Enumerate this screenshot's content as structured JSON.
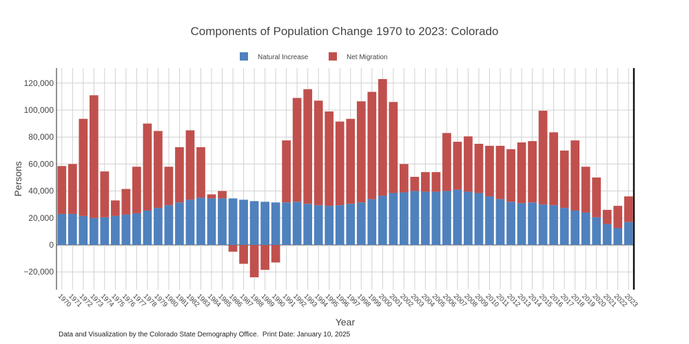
{
  "chart_data": {
    "type": "bar",
    "stacked": true,
    "title": "Components of Population Change 1970 to 2023: Colorado",
    "xlabel": "Year",
    "ylabel": "Persons",
    "ylim": [
      -32000,
      132000
    ],
    "yticks": [
      -20000,
      0,
      20000,
      40000,
      60000,
      80000,
      100000,
      120000
    ],
    "ytick_labels": [
      "−20,000",
      "0",
      "20,000",
      "40,000",
      "60,000",
      "80,000",
      "100,000",
      "120,000"
    ],
    "grid": true,
    "legend_position": "top-center",
    "categories": [
      "1970",
      "1971",
      "1972",
      "1973",
      "1974",
      "1975",
      "1976",
      "1977",
      "1978",
      "1979",
      "1980",
      "1981",
      "1982",
      "1983",
      "1984",
      "1985",
      "1986",
      "1987",
      "1988",
      "1989",
      "1990",
      "1991",
      "1992",
      "1993",
      "1994",
      "1995",
      "1996",
      "1997",
      "1998",
      "1999",
      "2000",
      "2001",
      "2002",
      "2003",
      "2004",
      "2005",
      "2006",
      "2007",
      "2008",
      "2009",
      "2010",
      "2011",
      "2012",
      "2013",
      "2014",
      "2015",
      "2016",
      "2017",
      "2018",
      "2019",
      "2020",
      "2021",
      "2022",
      "2023"
    ],
    "series": [
      {
        "name": "Natural Increase",
        "color": "#4f81bd",
        "values": [
          23000,
          23000,
          21500,
          20000,
          20500,
          21500,
          22500,
          23500,
          25500,
          27500,
          29500,
          31500,
          33500,
          35000,
          34500,
          34500,
          34500,
          33500,
          32500,
          32000,
          31500,
          31500,
          32000,
          30500,
          29500,
          29000,
          29500,
          30500,
          31500,
          34000,
          36500,
          38500,
          39000,
          40000,
          39500,
          39500,
          40000,
          41000,
          39500,
          38500,
          36000,
          34000,
          32000,
          31000,
          31500,
          30000,
          29500,
          27500,
          25500,
          24000,
          20500,
          15500,
          12500,
          17000
        ]
      },
      {
        "name": "Net Migration",
        "color": "#c0504d",
        "values": [
          35500,
          37000,
          72000,
          91000,
          34000,
          11500,
          19000,
          34500,
          64500,
          57000,
          28500,
          41000,
          51500,
          37500,
          3000,
          5500,
          -5000,
          -14000,
          -24000,
          -18500,
          -13000,
          46000,
          77000,
          85000,
          77500,
          70000,
          62000,
          63000,
          75000,
          79500,
          86500,
          67500,
          21000,
          10500,
          14500,
          14500,
          43000,
          35500,
          41000,
          36500,
          37500,
          39500,
          39000,
          45000,
          45500,
          69500,
          54000,
          42500,
          52000,
          34000,
          29500,
          10500,
          16500,
          19000
        ]
      }
    ]
  },
  "legend": [
    "Natural Increase",
    "Net Migration"
  ],
  "footer": "Data and Visualization by the Colorado State Demography Office.  Print Date: January 10, 2025"
}
